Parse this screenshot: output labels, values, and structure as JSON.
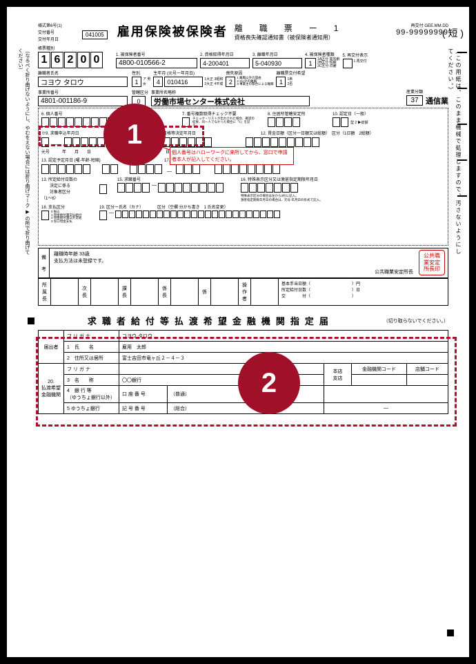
{
  "header": {
    "form_id_line1": "様式第6号(1)",
    "form_id_line2": "交付番号",
    "form_id_line3": "交付年月日",
    "form_date": "041005",
    "main_title": "雇用保険被保険者",
    "sub_title_1": "離　職　票　ー　1",
    "sub_title_2": "資格喪失確認通知書（被保険者通知用）",
    "reissue_label": "再交付",
    "reissue_code": "GEE.MM.DD",
    "reissue_num": "99-99999999",
    "short_label": "( 短 )"
  },
  "side_left": "（なるべく折り曲げないようにし、やむをえない場合には折り曲げマーク ▶ の所で折り曲げてください）",
  "side_right": "（この用紙は、このまま機械で処理しますので、汚さないようにしてください。）",
  "row1": {
    "label_choubo": "帳票種別",
    "choubo_digits": [
      "1",
      "6",
      "2",
      "0",
      "0"
    ],
    "l1": "1. 被保険者番号",
    "v1": "4800-010566-2",
    "l2": "2. 資格取得年月日",
    "v2": "4-200401",
    "l3": "3. 離職年月日",
    "v3": "5-040930",
    "l4_1": "4. 被保険者種類",
    "l4_notes": "1A区分 高年齢\n2B区分 短期\n3C区分 日雇",
    "v4": "1",
    "l5": "5. 再交付表示",
    "l5_note": "1 再交付"
  },
  "row2": {
    "l_name": "離職者氏名",
    "v_name": "コヨウ タロウ",
    "l_sex": "性別",
    "v_sex": "1",
    "sex_note": "ア 男\n女",
    "l_birth": "生年月 (元号ー年月日)",
    "v_birth_era": "4",
    "v_birth_date": "010416",
    "birth_note": "1大正 3昭和\n2大正 4平成",
    "l_cause": "喪失原因",
    "v_cause": "2",
    "cause_note": "1 離職以外の理由\n2 3以外の離職\n3 事業主の都合による離職",
    "l_rishoku": "離職票交付希望",
    "v_rishoku": "1",
    "rishoku_note": "1希\n2否"
  },
  "row3": {
    "l_office": "事業所番号",
    "v_office": "4801-001186-9",
    "l_kankatsu": "管轄区分",
    "v_kankatsu": "0",
    "l_jigyosho": "事業所名略称",
    "v_jigyosho": "労働市場センター株式会社",
    "l_sangyou": "産業分類",
    "v_sangyou_code": "37",
    "v_sangyou_name": "通信業"
  },
  "section6": {
    "label": "6. 個人番号"
  },
  "section7": {
    "label": "7. 番号複数取得チェック不要",
    "note": "チェック・リストが出力された場合、確認の結果、同一人でなかった場合に「1」を記入。"
  },
  "section8": {
    "label": "8. 住居所管轄安定所"
  },
  "section10": {
    "label": "10. 認定日（一般）",
    "note": "型 2 ▶総額"
  },
  "section9": {
    "label": "※9. 求職申込年月日"
  },
  "row_mid": {
    "l_jukyuu": "受給資格等決定年月日",
    "l_chingin": "12. 賃金日額（区分一日額又は総額）　区分（1日額　2総額）"
  },
  "red_note": "個人番号はハローワークに来所してから、窓口で申請者本人が記入してください。",
  "gengo_row": "元号　　　年　　月　　日　　　　　　　元号　　　年　　月　　日",
  "row13": {
    "l13_a": "13. 認定予定月日 (曜-年齢-短縮)",
    "l14": "14. 離職理由",
    "l17": "17. 金融機関・店舗コード",
    "l_kouza": "口座番号"
  },
  "row13b": {
    "l13b_1": "13. 所定給付日数の",
    "l13b_2": "　　決定に係る",
    "l13b_3": "　　対象者区分",
    "l13b_4": "（1～6）",
    "l15": "15. 求職番号",
    "l16_1": "16. 特殊表示区分又は激甚指定期限年月日",
    "l16_note": "特殊表示区分の場合は左から3桁に記入。\n激甚指定期限年月日の場合は、元号-年月日の形式で記入。"
  },
  "row18": {
    "l18": "18. 支払区分",
    "l18_note": "0 振込\n1 現金給付課支払給付\n2 現金給付課以外支給\n3 窓口現金支払",
    "l19": "19. 区分ー氏名（カナ）",
    "l19b": "区分（空欄 分かち書き　1 氏名変更）"
  },
  "biko": {
    "label": "備\n\n考",
    "line1": "離職時年齢 33歳",
    "line2": "支払方法は未登録です。",
    "stamp_line1": "公共職業安定所長",
    "stamp_box": "公共職\n業安定\n所長印"
  },
  "shozoku": {
    "l_shozoku": "所\n属\n長",
    "l_jichou": "次\n長",
    "l_kachou": "課\n長",
    "l_kakarichou": "係\n長",
    "l_kakari": "係",
    "l_sousakusha": "操\n作\n者",
    "r1": "基本手当日額（　　　　　　　　　　）円",
    "r2": "所定給付日数（　　　　　　　　　　）日",
    "r3": "交　　　　付（　　　　　　　　　　）"
  },
  "section2_title": "求職者給付等払渡希望金融機関指定届",
  "cut_note": "（切り取らないでください。）",
  "banktable": {
    "h_furigana": "フ リ ガ ナ",
    "h_furigana_v": "コヨウ タロウ",
    "r1_label": "1　氏　　名",
    "r1_v": "雇用　太郎",
    "r2_label": "2　住所又は居所",
    "r2_v": "富士吉田市竜ヶ丘２－４－３",
    "side_label_1": "届出者",
    "side_label_2": "20.\n払渡希望\n金融機関",
    "r3_label": "3　名　　称",
    "r3_v": "〇〇銀行",
    "r3_right1": "本店\n支店",
    "r3_h1": "金融機関コード",
    "r3_h2": "店舗コード",
    "r4_label": "4　銀 行 等\n（ゆうちょ銀行以外）",
    "r4_a": "口 座 番 号",
    "r4_b": "（普通）",
    "r5_label": "5 ゆうちょ銀行",
    "r5_a": "記 号 番 号",
    "r5_b": "（総合）",
    "r5_dash": "—"
  },
  "colors": {
    "badge_bg": "#a01028",
    "dashed_border": "#b01030",
    "red": "#c00000"
  }
}
